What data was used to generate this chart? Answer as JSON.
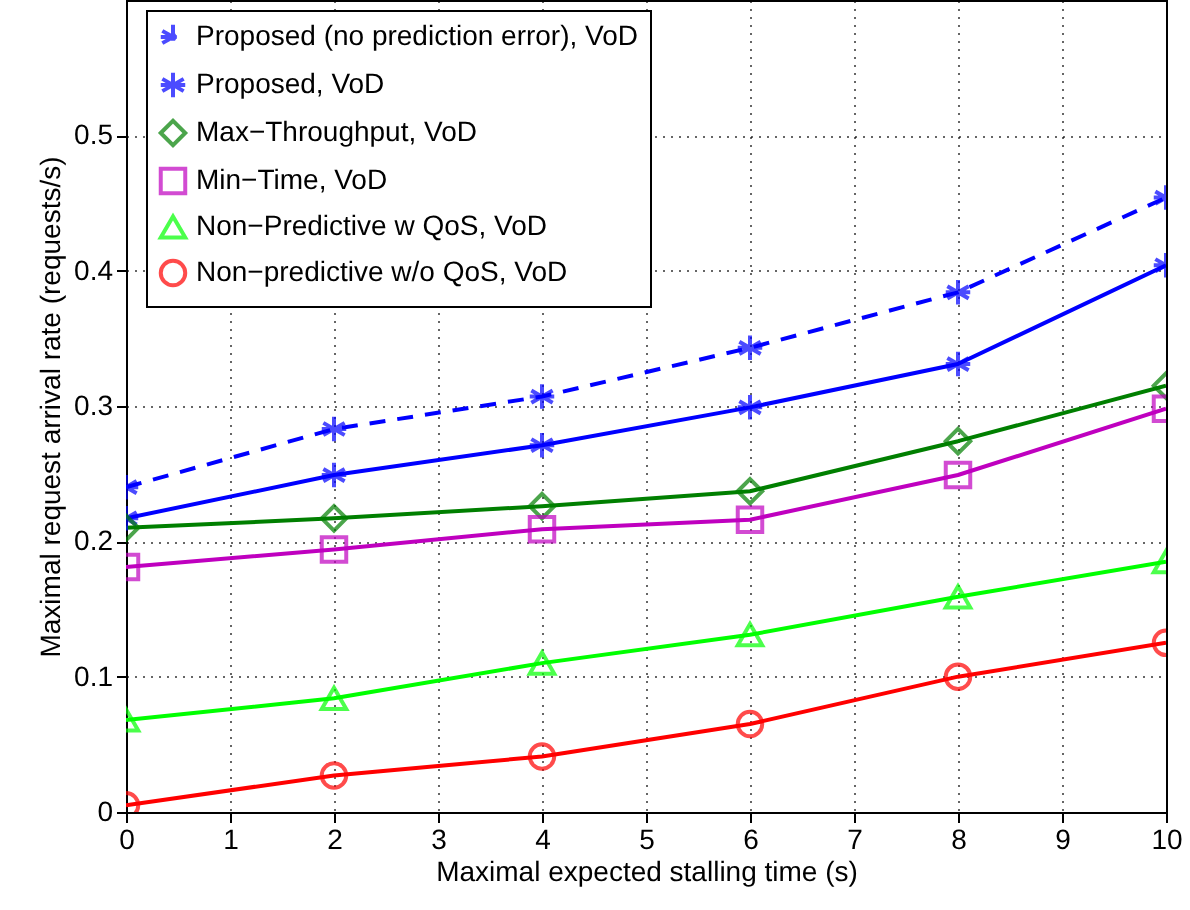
{
  "chart_data": {
    "type": "line",
    "xlabel": "Maximal expected stalling time (s)",
    "ylabel": "Maximal request arrival rate (requests/s)",
    "x": [
      0,
      2,
      4,
      6,
      8,
      10
    ],
    "series": [
      {
        "name": "Proposed (no prediction error), VoD",
        "color": "#0000ff",
        "marker": "cross",
        "line_style": "dashed",
        "values": [
          0.24,
          0.283,
          0.307,
          0.343,
          0.384,
          0.454
        ]
      },
      {
        "name": "Proposed, VoD",
        "color": "#0000ff",
        "marker": "cross",
        "line_style": "solid",
        "values": [
          0.217,
          0.249,
          0.271,
          0.299,
          0.331,
          0.404
        ]
      },
      {
        "name": "Max−Throughput, VoD",
        "color": "#007f00",
        "marker": "diamond",
        "line_style": "solid",
        "values": [
          0.21,
          0.217,
          0.226,
          0.237,
          0.274,
          0.315
        ]
      },
      {
        "name": "Min−Time, VoD",
        "color": "#bf00bf",
        "marker": "square",
        "line_style": "solid",
        "values": [
          0.181,
          0.194,
          0.209,
          0.216,
          0.249,
          0.298
        ]
      },
      {
        "name": "Non−Predictive w QoS, VoD",
        "color": "#00ff00",
        "marker": "triangle",
        "line_style": "solid",
        "values": [
          0.068,
          0.084,
          0.11,
          0.131,
          0.159,
          0.185
        ]
      },
      {
        "name": "Non−predictive w/o QoS, VoD",
        "color": "#ff0000",
        "marker": "circle",
        "line_style": "solid",
        "values": [
          0.005,
          0.027,
          0.041,
          0.065,
          0.1,
          0.125
        ]
      }
    ],
    "xlim": [
      0,
      10
    ],
    "xticks": [
      0,
      1,
      2,
      3,
      4,
      5,
      6,
      7,
      8,
      9,
      10
    ],
    "ylim": [
      0,
      0.6
    ],
    "yticks": [
      0,
      0.1,
      0.2,
      0.3,
      0.4,
      0.5
    ],
    "grid": true,
    "legend": "top left"
  }
}
